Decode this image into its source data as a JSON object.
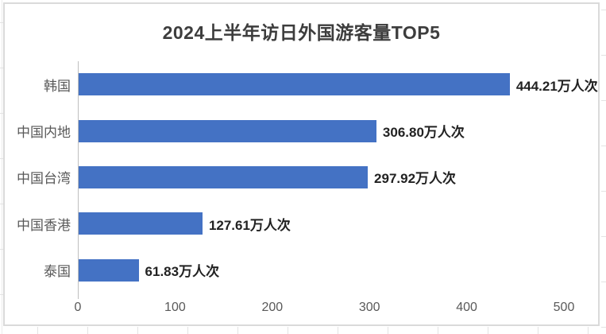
{
  "chart_data": {
    "type": "bar",
    "orientation": "horizontal",
    "title": "2024上半年访日外国游客量TOP5",
    "categories": [
      "韩国",
      "中国内地",
      "中国台湾",
      "中国香港",
      "泰国"
    ],
    "values": [
      444.21,
      306.8,
      297.92,
      127.61,
      61.83
    ],
    "data_labels": [
      "444.21万人次",
      "306.80万人次",
      "297.92万人次",
      "127.61万人次",
      "61.83万人次"
    ],
    "unit": "万人次",
    "x_ticks": [
      "0",
      "100",
      "200",
      "300",
      "400",
      "500"
    ],
    "x_tick_values": [
      0,
      100,
      200,
      300,
      400,
      500
    ],
    "xlim": [
      0,
      500
    ],
    "grid": false,
    "legend": false,
    "bar_color": "#4472C4",
    "title_color": "#3D3D3D",
    "category_label_color": "#595959",
    "data_label_color": "#222222",
    "tick_label_color": "#595959",
    "axis_line_color": "#BFBFBF",
    "frame_color": "#DADADA"
  }
}
